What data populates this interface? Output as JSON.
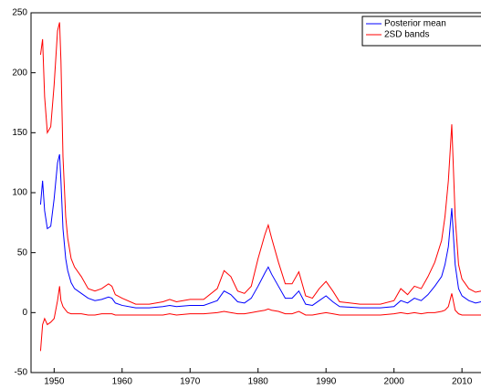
{
  "chart_data": {
    "type": "line",
    "x": [
      1948.0,
      1948.3,
      1948.6,
      1949.0,
      1949.5,
      1950.0,
      1950.5,
      1950.8,
      1951.0,
      1951.3,
      1951.7,
      1952.0,
      1952.5,
      1953.0,
      1954.0,
      1955.0,
      1956.0,
      1957.0,
      1958.0,
      1958.5,
      1959.0,
      1960.0,
      1962.0,
      1964.0,
      1966.0,
      1967.0,
      1968.0,
      1970.0,
      1972.0,
      1974.0,
      1975.0,
      1976.0,
      1977.0,
      1978.0,
      1979.0,
      1980.0,
      1981.0,
      1981.5,
      1982.0,
      1983.0,
      1984.0,
      1985.0,
      1986.0,
      1987.0,
      1988.0,
      1989.0,
      1990.0,
      1991.0,
      1992.0,
      1995.0,
      1998.0,
      2000.0,
      2001.0,
      2002.0,
      2003.0,
      2004.0,
      2005.0,
      2006.0,
      2007.0,
      2007.5,
      2008.0,
      2008.5,
      2009.0,
      2009.5,
      2010.0,
      2011.0,
      2012.0,
      2012.8
    ],
    "series": [
      {
        "name": "Posterior mean",
        "color": "#0000ff",
        "values": [
          90,
          110,
          85,
          70,
          72,
          95,
          125,
          132,
          110,
          70,
          45,
          35,
          25,
          20,
          16,
          12,
          10,
          11,
          13,
          12,
          8,
          6,
          4,
          4,
          5,
          6,
          5,
          6,
          6,
          10,
          18,
          15,
          9,
          8,
          12,
          22,
          33,
          38,
          32,
          22,
          12,
          12,
          18,
          7,
          6,
          10,
          14,
          9,
          5,
          4,
          4,
          5,
          10,
          8,
          12,
          10,
          15,
          22,
          30,
          40,
          55,
          87,
          40,
          20,
          14,
          10,
          8,
          9
        ]
      },
      {
        "name": "2SD bands",
        "color": "#ff0000",
        "upper": [
          215,
          228,
          180,
          150,
          155,
          190,
          235,
          242,
          210,
          130,
          80,
          62,
          45,
          38,
          30,
          20,
          18,
          20,
          24,
          22,
          15,
          12,
          7,
          7,
          9,
          11,
          9,
          11,
          11,
          20,
          35,
          30,
          18,
          16,
          22,
          45,
          65,
          73,
          62,
          42,
          24,
          24,
          34,
          14,
          12,
          20,
          26,
          18,
          9,
          7,
          7,
          10,
          20,
          15,
          22,
          20,
          30,
          42,
          60,
          80,
          110,
          157,
          80,
          40,
          28,
          20,
          17,
          18
        ],
        "lower": [
          -32,
          -10,
          -5,
          -10,
          -8,
          -5,
          10,
          22,
          10,
          5,
          2,
          0,
          -1,
          -1,
          -1,
          -2,
          -2,
          -1,
          -1,
          -1,
          -2,
          -2,
          -2,
          -2,
          -2,
          -1,
          -2,
          -1,
          -1,
          0,
          1,
          0,
          -1,
          -1,
          0,
          1,
          2,
          3,
          2,
          1,
          -1,
          -1,
          1,
          -2,
          -2,
          -1,
          0,
          -1,
          -2,
          -2,
          -2,
          -1,
          0,
          -1,
          0,
          -1,
          0,
          0,
          1,
          2,
          5,
          16,
          2,
          -1,
          -2,
          -2,
          -2,
          -2
        ]
      }
    ],
    "xlim": [
      1946.6,
      2012.8
    ],
    "xticks": [
      1950,
      1960,
      1970,
      1980,
      1990,
      2000,
      2010
    ],
    "ylim": [
      -50,
      250
    ],
    "yticks": [
      -50,
      0,
      50,
      100,
      150,
      200,
      250
    ],
    "grid": false,
    "legend": "top-right"
  }
}
